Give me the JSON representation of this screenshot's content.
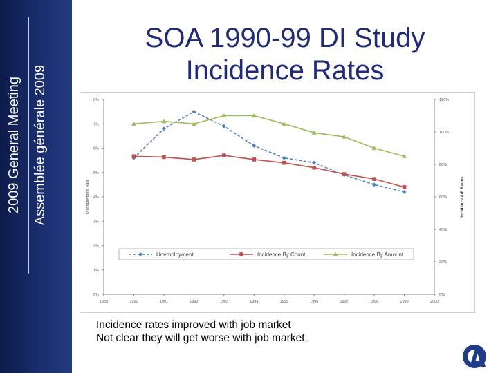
{
  "sidebar": {
    "line1": "2009 General Meeting",
    "line2": "Assemblée générale 2009"
  },
  "slide": {
    "title_line1": "SOA 1990-99 DI Study",
    "title_line2": "Incidence Rates",
    "notes": [
      "Incidence rates improved with job market",
      "Not clear they will get worse with job market."
    ]
  },
  "chart_data": {
    "type": "line",
    "x": [
      1990,
      1991,
      1992,
      1993,
      1994,
      1995,
      1996,
      1997,
      1998,
      1999
    ],
    "xticks": [
      "1989",
      "1990",
      "1991",
      "1992",
      "1993",
      "1994",
      "1995",
      "1996",
      "1997",
      "1998",
      "1999",
      "2000"
    ],
    "xlim": [
      1989,
      2000
    ],
    "ylabel_left": "Unemployment Rate",
    "ylim_left": [
      0,
      8
    ],
    "yticks_left": [
      "0%",
      "1%",
      "2%",
      "3%",
      "4%",
      "5%",
      "6%",
      "7%",
      "8%"
    ],
    "ylabel_right": "Incidence A/E Ratios",
    "ylim_right": [
      0,
      120
    ],
    "yticks_right": [
      "0%",
      "20%",
      "40%",
      "60%",
      "80%",
      "100%",
      "120%"
    ],
    "series": [
      {
        "name": "Unemployment",
        "axis": "left",
        "color": "#4f81bd",
        "style": "dashed",
        "marker": "diamond",
        "values": [
          5.6,
          6.8,
          7.5,
          6.9,
          6.1,
          5.6,
          5.4,
          4.9,
          4.5,
          4.2
        ]
      },
      {
        "name": "Incidence By Count",
        "axis": "right",
        "color": "#c0504d",
        "style": "solid",
        "marker": "square",
        "values": [
          85,
          84.5,
          83,
          85.5,
          83,
          81,
          78,
          74,
          71,
          66
        ]
      },
      {
        "name": "Incidence By Amount",
        "axis": "right",
        "color": "#9bbb59",
        "style": "solid",
        "marker": "triangle",
        "values": [
          105,
          106.5,
          105,
          110,
          110,
          105,
          99.5,
          97,
          90,
          85
        ]
      }
    ],
    "legend": {
      "placement": "lower-middle"
    },
    "grid": false
  }
}
